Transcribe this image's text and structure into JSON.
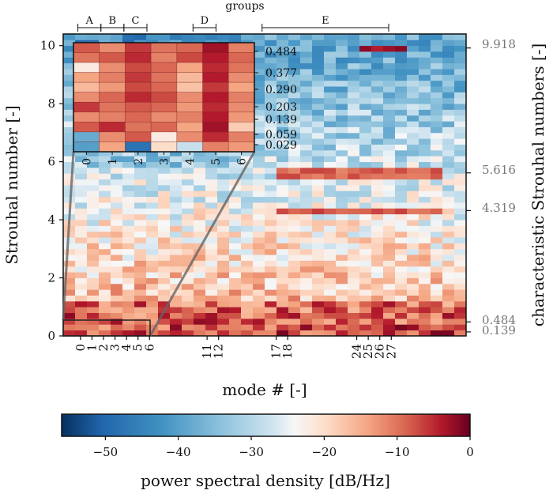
{
  "chart_data": {
    "type": "heatmap",
    "main": {
      "xlabel": "mode # [-]",
      "ylabel": "Strouhal number [-]",
      "ylim": [
        0,
        10.4
      ],
      "yticks": [
        0,
        2,
        4,
        6,
        8,
        10
      ],
      "xlim": [
        -1,
        33
      ],
      "xticks": [
        0,
        1,
        2,
        3,
        4,
        5,
        6,
        11,
        12,
        17,
        18,
        24,
        25,
        26,
        27
      ],
      "columns": 34,
      "rows": 52
    },
    "right_axis": {
      "label": "characteristic Strouhal numbers [-]",
      "ticks": [
        {
          "value": 9.918,
          "label": "9.918"
        },
        {
          "value": 5.616,
          "label": "5.616"
        },
        {
          "value": 4.319,
          "label": "4.319"
        },
        {
          "value": 0.484,
          "label": "0.484"
        },
        {
          "value": 0.139,
          "label": "0.139"
        }
      ]
    },
    "groups": {
      "title": "groups",
      "items": [
        {
          "name": "A",
          "from": 0,
          "to": 2
        },
        {
          "name": "B",
          "from": 2,
          "to": 4
        },
        {
          "name": "C",
          "from": 4,
          "to": 6
        },
        {
          "name": "D",
          "from": 10,
          "to": 12
        },
        {
          "name": "E",
          "from": 16,
          "to": 27
        }
      ]
    },
    "inset": {
      "xticks": [
        "0",
        "1",
        "2",
        "3",
        "4",
        "5",
        "6"
      ],
      "yticks": [
        "0.484",
        "0.377",
        "0.290",
        "0.203",
        "0.139",
        "0.059",
        "0.029"
      ],
      "zoom_range": {
        "modes": [
          0,
          6
        ],
        "strouhal": [
          0,
          0.55
        ]
      },
      "values": [
        [
          -8,
          -12,
          -6,
          -10,
          -9,
          -3,
          -11
        ],
        [
          -10,
          -8,
          -5,
          -11,
          -7,
          -4,
          -9
        ],
        [
          -22,
          -12,
          -7,
          -9,
          -14,
          -5,
          -10
        ],
        [
          -14,
          -11,
          -6,
          -10,
          -16,
          -4,
          -12
        ],
        [
          -16,
          -13,
          -7,
          -9,
          -17,
          -6,
          -14
        ],
        [
          -12,
          -9,
          -5,
          -7,
          -12,
          -4,
          -11
        ],
        [
          -6,
          -10,
          -8,
          -9,
          -13,
          -5,
          -12
        ],
        [
          -12,
          -11,
          -9,
          -12,
          -11,
          -4,
          -13
        ],
        [
          -8,
          -5,
          -10,
          -9,
          -14,
          -3,
          -18
        ],
        [
          -38,
          -12,
          -8,
          -22,
          -12,
          -5,
          -11
        ],
        [
          -40,
          -14,
          -48,
          -20,
          -28,
          -11,
          -13
        ]
      ]
    },
    "colorbar": {
      "label": "power spectral density [dB/Hz]",
      "vmin": -56,
      "vmax": 0,
      "ticks": [
        -50,
        -40,
        -30,
        -20,
        -10,
        0
      ],
      "tick_labels": [
        "−50",
        "−40",
        "−30",
        "−20",
        "−10",
        "0"
      ],
      "colormap": "RdBu_r"
    },
    "highlight_bands": [
      {
        "strouhal": 9.918,
        "modes": [
          24,
          27
        ],
        "level": -3
      },
      {
        "strouhal": 5.616,
        "modes": [
          17,
          30
        ],
        "level": -9
      },
      {
        "strouhal": 4.319,
        "modes": [
          17,
          30
        ],
        "level": -8
      }
    ]
  }
}
